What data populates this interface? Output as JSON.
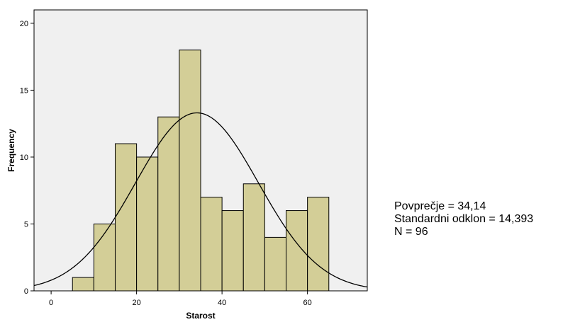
{
  "chart_data": {
    "type": "bar",
    "subtype": "histogram",
    "xlabel": "Starost",
    "ylabel": "Frequency",
    "xlim": [
      -4,
      74
    ],
    "ylim": [
      0,
      21
    ],
    "x_ticks": [
      0,
      20,
      40,
      60
    ],
    "y_ticks": [
      0,
      5,
      10,
      15,
      20
    ],
    "bin_width": 5,
    "bins": [
      {
        "start": 5,
        "end": 10,
        "value": 1
      },
      {
        "start": 10,
        "end": 15,
        "value": 5
      },
      {
        "start": 15,
        "end": 20,
        "value": 11
      },
      {
        "start": 20,
        "end": 25,
        "value": 10
      },
      {
        "start": 25,
        "end": 30,
        "value": 13
      },
      {
        "start": 30,
        "end": 35,
        "value": 18
      },
      {
        "start": 35,
        "end": 40,
        "value": 7
      },
      {
        "start": 40,
        "end": 45,
        "value": 6
      },
      {
        "start": 45,
        "end": 50,
        "value": 8
      },
      {
        "start": 50,
        "end": 55,
        "value": 4
      },
      {
        "start": 55,
        "end": 60,
        "value": 6
      },
      {
        "start": 60,
        "end": 65,
        "value": 7
      }
    ],
    "normal_curve": {
      "mean": 34.14,
      "sd": 14.393,
      "n": 96
    },
    "colors": {
      "plot_background": "#f0f0f0",
      "bar_fill": "#d3ce97",
      "bar_stroke": "#000000",
      "curve": "#000000"
    },
    "grid": false,
    "legend": "none"
  },
  "stats": {
    "mean_text": "Povprečje = 34,14",
    "sd_text": "Standardni odklon = 14,393",
    "n_text": "N = 96"
  }
}
